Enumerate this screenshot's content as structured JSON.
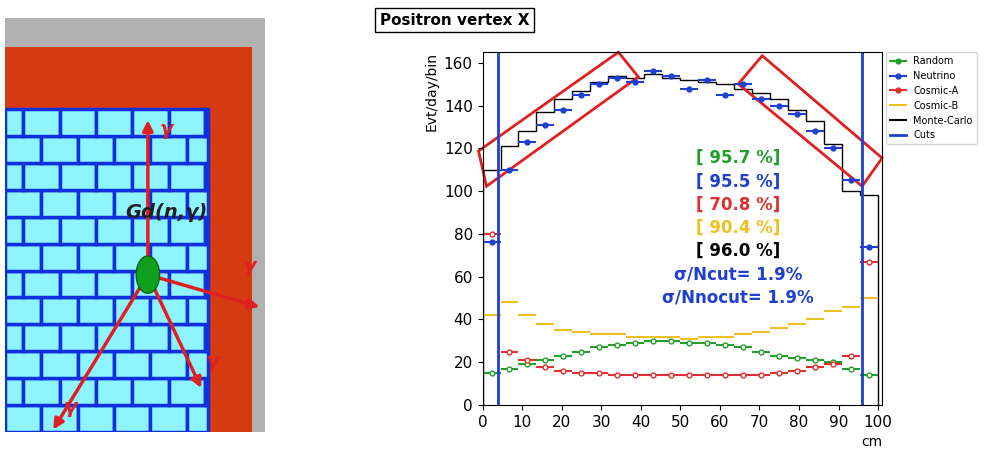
{
  "chart_data": {
    "type": "histogram",
    "title": "Positron vertex X",
    "x_label": "cm",
    "y_label": "Evt/day/bin",
    "xlim": [
      0,
      101
    ],
    "ylim": [
      0,
      165
    ],
    "xticks": [
      0,
      10,
      20,
      30,
      40,
      50,
      60,
      70,
      80,
      90,
      100
    ],
    "yticks": [
      0,
      20,
      40,
      60,
      80,
      100,
      120,
      140,
      160
    ],
    "legend": "upper right",
    "bins": [
      0,
      4.55,
      9.09,
      13.64,
      18.18,
      22.73,
      27.27,
      31.82,
      36.36,
      40.91,
      45.45,
      50,
      54.55,
      59.09,
      63.64,
      68.18,
      72.73,
      77.27,
      81.82,
      86.36,
      90.91,
      95.45,
      100
    ],
    "series": [
      {
        "name": "Random",
        "color": "#22a02a",
        "type": "points",
        "marker": "circle",
        "values": [
          15,
          17,
          19,
          21,
          23,
          25,
          27,
          28,
          29,
          30,
          30,
          29,
          29,
          28,
          27,
          25,
          23,
          22,
          21,
          20,
          17,
          14
        ]
      },
      {
        "name": "Neutrino",
        "color": "#1f3fcf",
        "type": "points",
        "marker": "dot",
        "values": [
          76,
          110,
          123,
          131,
          138,
          145,
          150,
          153,
          151,
          156,
          154,
          148,
          152,
          145,
          150,
          143,
          140,
          136,
          128,
          120,
          105,
          74
        ]
      },
      {
        "name": "Cosmic-A",
        "color": "#e03030",
        "type": "points",
        "marker": "circle",
        "values": [
          80,
          25,
          21,
          18,
          16,
          15,
          15,
          14,
          14,
          14,
          14,
          14,
          14,
          14,
          14,
          14,
          15,
          16,
          18,
          19,
          23,
          67
        ]
      },
      {
        "name": "Cosmic-B",
        "color": "#f0c020",
        "type": "points",
        "marker": "none",
        "values": [
          42,
          48,
          42,
          38,
          35,
          34,
          33,
          33,
          32,
          32,
          32,
          31,
          32,
          32,
          33,
          34,
          36,
          38,
          40,
          44,
          46,
          50
        ]
      },
      {
        "name": "Monte-Carlo",
        "color": "#000000",
        "type": "step",
        "values": [
          110,
          121,
          128,
          137,
          143,
          147,
          151,
          154,
          153,
          155,
          153,
          152,
          151,
          150,
          148,
          146,
          143,
          138,
          133,
          122,
          100,
          98
        ]
      },
      {
        "name": "Cuts",
        "color": "#1f3fcf",
        "type": "vline",
        "x": [
          4,
          96
        ]
      }
    ],
    "annotations": [
      {
        "text": "[ 95.7 %]",
        "color": "#22a02a"
      },
      {
        "text": "[ 95.5 %]",
        "color": "#1f3fcf"
      },
      {
        "text": "[ 70.8 %]",
        "color": "#e03030"
      },
      {
        "text": "[ 90.4 %]",
        "color": "#f0c020"
      },
      {
        "text": "[ 96.0 %]",
        "color": "#000000"
      },
      {
        "text": "σ/Ncut= 1.9%",
        "color": "#1f3fcf"
      },
      {
        "text": "σ/Nnocut= 1.9%",
        "color": "#1f3fcf"
      }
    ]
  },
  "diagram": {
    "label": "Gd(n,γ)",
    "arrow_labels": [
      "γ",
      "γ",
      "γ",
      "γ"
    ]
  }
}
